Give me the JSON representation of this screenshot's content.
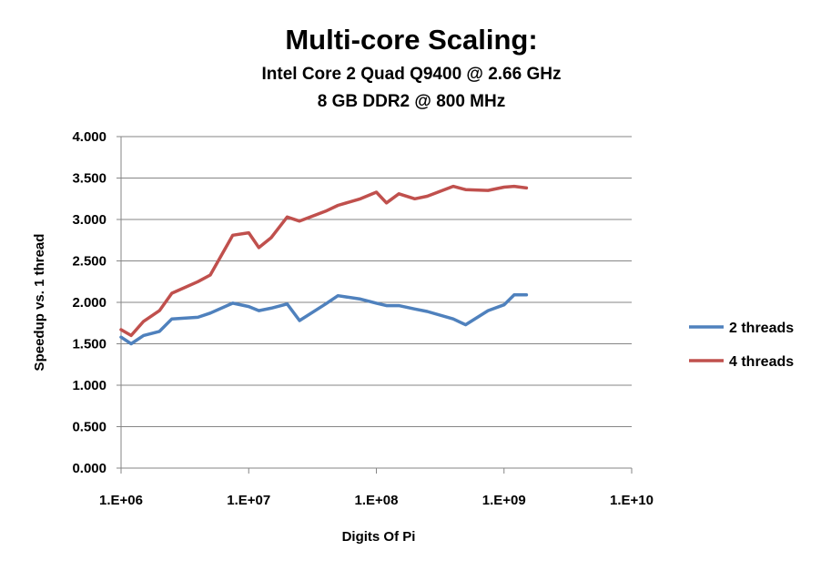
{
  "chart_data": {
    "type": "line",
    "title": "Multi-core Scaling:",
    "subtitle_lines": [
      "Intel Core 2 Quad Q9400 @ 2.66 GHz",
      "8 GB DDR2 @ 800 MHz"
    ],
    "xlabel": "Digits Of Pi",
    "ylabel": "Speedup vs. 1 thread",
    "x_scale": "log",
    "xlim": [
      1000000,
      10000000000
    ],
    "ylim": [
      0,
      4
    ],
    "x_ticks": [
      "1.E+06",
      "1.E+07",
      "1.E+08",
      "1.E+09",
      "1.E+10"
    ],
    "y_ticks": [
      "0.000",
      "0.500",
      "1.000",
      "1.500",
      "2.000",
      "2.500",
      "3.000",
      "3.500",
      "4.000"
    ],
    "grid": "horizontal",
    "legend_position": "right",
    "x": [
      1000000,
      1200000,
      1500000,
      2000000,
      2500000,
      4000000,
      5000000,
      7500000,
      10000000,
      12000000,
      15000000,
      20000000,
      25000000,
      40000000,
      50000000,
      75000000,
      100000000,
      120000000,
      150000000,
      200000000,
      250000000,
      400000000,
      500000000,
      750000000,
      1000000000,
      1200000000,
      1500000000
    ],
    "series": [
      {
        "name": "2 threads",
        "color": "#4f81bd",
        "values": [
          1.58,
          1.5,
          1.6,
          1.65,
          1.8,
          1.82,
          1.87,
          1.99,
          1.95,
          1.9,
          1.93,
          1.98,
          1.78,
          1.98,
          2.08,
          2.04,
          1.99,
          1.96,
          1.96,
          1.92,
          1.89,
          1.8,
          1.73,
          1.9,
          1.97,
          2.09,
          2.09
        ]
      },
      {
        "name": "4 threads",
        "color": "#c0504d",
        "values": [
          1.67,
          1.6,
          1.77,
          1.9,
          2.11,
          2.25,
          2.33,
          2.81,
          2.84,
          2.66,
          2.78,
          3.03,
          2.98,
          3.1,
          3.17,
          3.25,
          3.33,
          3.2,
          3.31,
          3.25,
          3.28,
          3.4,
          3.36,
          3.35,
          3.39,
          3.4,
          3.38
        ]
      }
    ]
  }
}
